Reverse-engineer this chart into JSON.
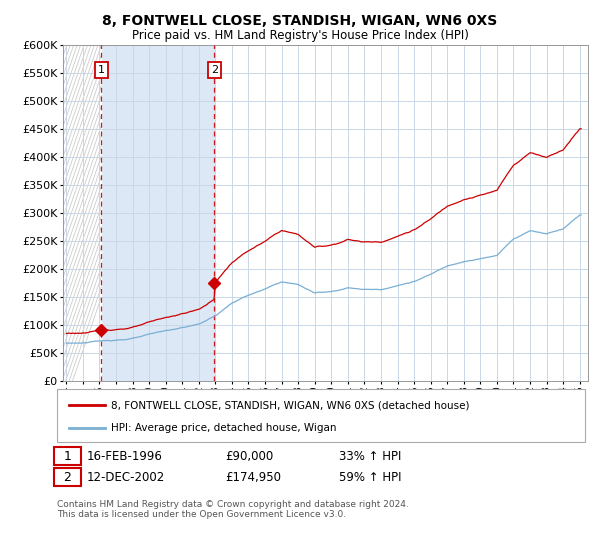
{
  "title": "8, FONTWELL CLOSE, STANDISH, WIGAN, WN6 0XS",
  "subtitle": "Price paid vs. HM Land Registry's House Price Index (HPI)",
  "ylim": [
    0,
    600000
  ],
  "yticks": [
    0,
    50000,
    100000,
    150000,
    200000,
    250000,
    300000,
    350000,
    400000,
    450000,
    500000,
    550000,
    600000
  ],
  "sale1_date": 1996.12,
  "sale1_price": 90000,
  "sale2_date": 2002.94,
  "sale2_price": 174950,
  "sale1_label": "1",
  "sale2_label": "2",
  "sale1_annotation": "16-FEB-1996",
  "sale1_amount": "£90,000",
  "sale1_hpi": "33% ↑ HPI",
  "sale2_annotation": "12-DEC-2002",
  "sale2_amount": "£174,950",
  "sale2_hpi": "59% ↑ HPI",
  "legend_line1": "8, FONTWELL CLOSE, STANDISH, WIGAN, WN6 0XS (detached house)",
  "legend_line2": "HPI: Average price, detached house, Wigan",
  "footnote": "Contains HM Land Registry data © Crown copyright and database right 2024.\nThis data is licensed under the Open Government Licence v3.0.",
  "price_line_color": "#cc0000",
  "hpi_line_color": "#7aafd4",
  "grid_color": "#c8d8e8",
  "vline_color": "#cc0000",
  "shade_color": "#dce8f5",
  "hatch_color": "#d0d0d0",
  "sale_marker_color": "#cc0000",
  "sale_label_border_color": "#cc0000",
  "xstart": 1994,
  "xend": 2025
}
